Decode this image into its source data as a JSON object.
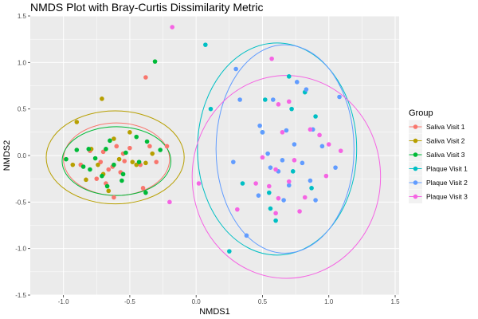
{
  "chart_data": {
    "type": "scatter",
    "title": "NMDS Plot with Bray-Curtis Dissimilarity Metric",
    "xlabel": "NMDS1",
    "ylabel": "NMDS2",
    "xlim": [
      -1.25,
      1.53
    ],
    "ylim": [
      -1.5,
      1.5
    ],
    "x_ticks": [
      -1.0,
      -0.5,
      0.0,
      0.5,
      1.0,
      1.5
    ],
    "x_tick_labels": [
      "-1.0",
      "-0.5",
      "0.0",
      "0.5",
      "1.0",
      "1.5"
    ],
    "y_ticks": [
      -1.5,
      -1.0,
      -0.5,
      0.0,
      0.5,
      1.0,
      1.5
    ],
    "y_tick_labels": [
      "-1.5",
      "-1.0",
      "-0.5",
      "0.0",
      "0.5",
      "1.0",
      "1.5"
    ],
    "grid": true,
    "legend": {
      "title": "Group",
      "placement": "right"
    },
    "series": [
      {
        "name": "Saliva Visit 1",
        "color": "#F8766D",
        "points": [
          [
            -0.38,
            0.84
          ],
          [
            -0.87,
            -0.1
          ],
          [
            -0.8,
            0.05
          ],
          [
            -0.72,
            -0.07
          ],
          [
            -0.7,
            0.04
          ],
          [
            -0.66,
            -0.15
          ],
          [
            -0.63,
            -0.12
          ],
          [
            -0.6,
            0.1
          ],
          [
            -0.57,
            -0.18
          ],
          [
            -0.54,
            -0.06
          ],
          [
            -0.5,
            0.08
          ],
          [
            -0.42,
            -0.1
          ],
          [
            -0.35,
            0.1
          ],
          [
            -0.3,
            -0.07
          ],
          [
            -0.22,
            0.1
          ],
          [
            -0.75,
            -0.25
          ],
          [
            -0.68,
            -0.3
          ],
          [
            -0.62,
            -0.45
          ],
          [
            -0.4,
            -0.35
          ],
          [
            -0.55,
            0.02
          ]
        ]
      },
      {
        "name": "Saliva Visit 2",
        "color": "#B79F00",
        "points": [
          [
            -0.71,
            0.61
          ],
          [
            -0.9,
            0.36
          ],
          [
            -0.93,
            -0.1
          ],
          [
            -0.83,
            -0.26
          ],
          [
            -0.79,
            0.07
          ],
          [
            -0.74,
            -0.1
          ],
          [
            -0.66,
            -0.38
          ],
          [
            -0.62,
            0.18
          ],
          [
            -0.58,
            -0.04
          ],
          [
            -0.5,
            0.25
          ],
          [
            -0.48,
            -0.07
          ],
          [
            -0.45,
            -0.1
          ],
          [
            -0.38,
            -0.08
          ],
          [
            -0.33,
            0.02
          ],
          [
            -0.7,
            -0.2
          ]
        ]
      },
      {
        "name": "Saliva Visit 3",
        "color": "#00BA38",
        "points": [
          [
            -0.31,
            1.01
          ],
          [
            -0.98,
            -0.04
          ],
          [
            -0.9,
            0.06
          ],
          [
            -0.85,
            -0.12
          ],
          [
            -0.81,
            0.07
          ],
          [
            -0.76,
            -0.03
          ],
          [
            -0.71,
            -0.22
          ],
          [
            -0.68,
            0.07
          ],
          [
            -0.65,
            0.16
          ],
          [
            -0.62,
            -0.1
          ],
          [
            -0.56,
            -0.27
          ],
          [
            -0.53,
            0.03
          ],
          [
            -0.45,
            0.2
          ],
          [
            -0.43,
            -0.07
          ],
          [
            -0.37,
            0.15
          ],
          [
            -0.27,
            0.06
          ],
          [
            -0.38,
            -0.4
          ],
          [
            -0.67,
            -0.33
          ],
          [
            -0.8,
            -0.15
          ],
          [
            -0.55,
            -0.2
          ]
        ]
      },
      {
        "name": "Plaque Visit 1",
        "color": "#00BFC4",
        "points": [
          [
            0.07,
            1.19
          ],
          [
            0.11,
            0.5
          ],
          [
            0.35,
            -0.3
          ],
          [
            0.25,
            -1.03
          ],
          [
            0.5,
            0.25
          ],
          [
            0.56,
            -0.57
          ],
          [
            0.6,
            -0.7
          ],
          [
            0.7,
            0.85
          ],
          [
            0.73,
            -0.17
          ],
          [
            0.82,
            0.68
          ],
          [
            0.9,
            0.42
          ],
          [
            0.87,
            -0.35
          ],
          [
            0.52,
            0.6
          ],
          [
            0.72,
            0.5
          ],
          [
            0.55,
            -0.4
          ]
        ]
      },
      {
        "name": "Plaque Visit 2",
        "color": "#619CFF",
        "points": [
          [
            0.3,
            0.93
          ],
          [
            0.33,
            0.6
          ],
          [
            0.28,
            -0.07
          ],
          [
            0.48,
            0.32
          ],
          [
            0.5,
            0.25
          ],
          [
            0.54,
            0.02
          ],
          [
            0.56,
            -0.13
          ],
          [
            0.62,
            -0.17
          ],
          [
            0.66,
            -0.48
          ],
          [
            0.68,
            0.27
          ],
          [
            0.74,
            0.12
          ],
          [
            0.76,
            0.79
          ],
          [
            0.8,
            -0.08
          ],
          [
            0.83,
            0.71
          ],
          [
            0.86,
            -0.27
          ],
          [
            0.88,
            0.28
          ],
          [
            0.9,
            -0.48
          ],
          [
            1.08,
            0.63
          ],
          [
            1.05,
            -0.13
          ],
          [
            0.38,
            -0.86
          ],
          [
            0.47,
            -0.43
          ],
          [
            0.7,
            -0.32
          ],
          [
            0.65,
            -0.05
          ],
          [
            0.95,
            0.1
          ],
          [
            0.58,
            0.6
          ]
        ]
      },
      {
        "name": "Plaque Visit 3",
        "color": "#F564E3",
        "points": [
          [
            -0.18,
            1.38
          ],
          [
            0.57,
            1.04
          ],
          [
            0.62,
            0.55
          ],
          [
            0.7,
            0.58
          ],
          [
            0.86,
            0.28
          ],
          [
            0.93,
            0.22
          ],
          [
            1.0,
            0.12
          ],
          [
            1.09,
            0.05
          ],
          [
            0.65,
            0.25
          ],
          [
            0.5,
            -0.02
          ],
          [
            0.6,
            -0.15
          ],
          [
            0.55,
            -0.33
          ],
          [
            0.62,
            -0.46
          ],
          [
            0.6,
            -0.62
          ],
          [
            0.78,
            -0.6
          ],
          [
            0.31,
            -0.58
          ],
          [
            0.02,
            -0.3
          ],
          [
            -0.2,
            -0.5
          ],
          [
            0.45,
            -0.3
          ],
          [
            0.7,
            -0.28
          ],
          [
            0.82,
            -0.45
          ],
          [
            0.98,
            -0.22
          ],
          [
            0.74,
            -0.05
          ]
        ]
      }
    ],
    "ellipses": [
      {
        "series": "Saliva Visit 1",
        "cx": -0.6,
        "cy": -0.04,
        "rx": 0.4,
        "ry": 0.39
      },
      {
        "series": "Saliva Visit 2",
        "cx": -0.61,
        "cy": -0.02,
        "rx": 0.52,
        "ry": 0.5
      },
      {
        "series": "Saliva Visit 3",
        "cx": -0.6,
        "cy": -0.06,
        "rx": 0.41,
        "ry": 0.37
      },
      {
        "series": "Plaque Visit 1",
        "cx": 0.61,
        "cy": 0.07,
        "rx": 0.6,
        "ry": 1.14
      },
      {
        "series": "Plaque Visit 2",
        "cx": 0.67,
        "cy": 0.07,
        "rx": 0.52,
        "ry": 1.12
      },
      {
        "series": "Plaque Visit 3",
        "cx": 0.68,
        "cy": -0.23,
        "rx": 0.71,
        "ry": 1.09
      }
    ]
  }
}
